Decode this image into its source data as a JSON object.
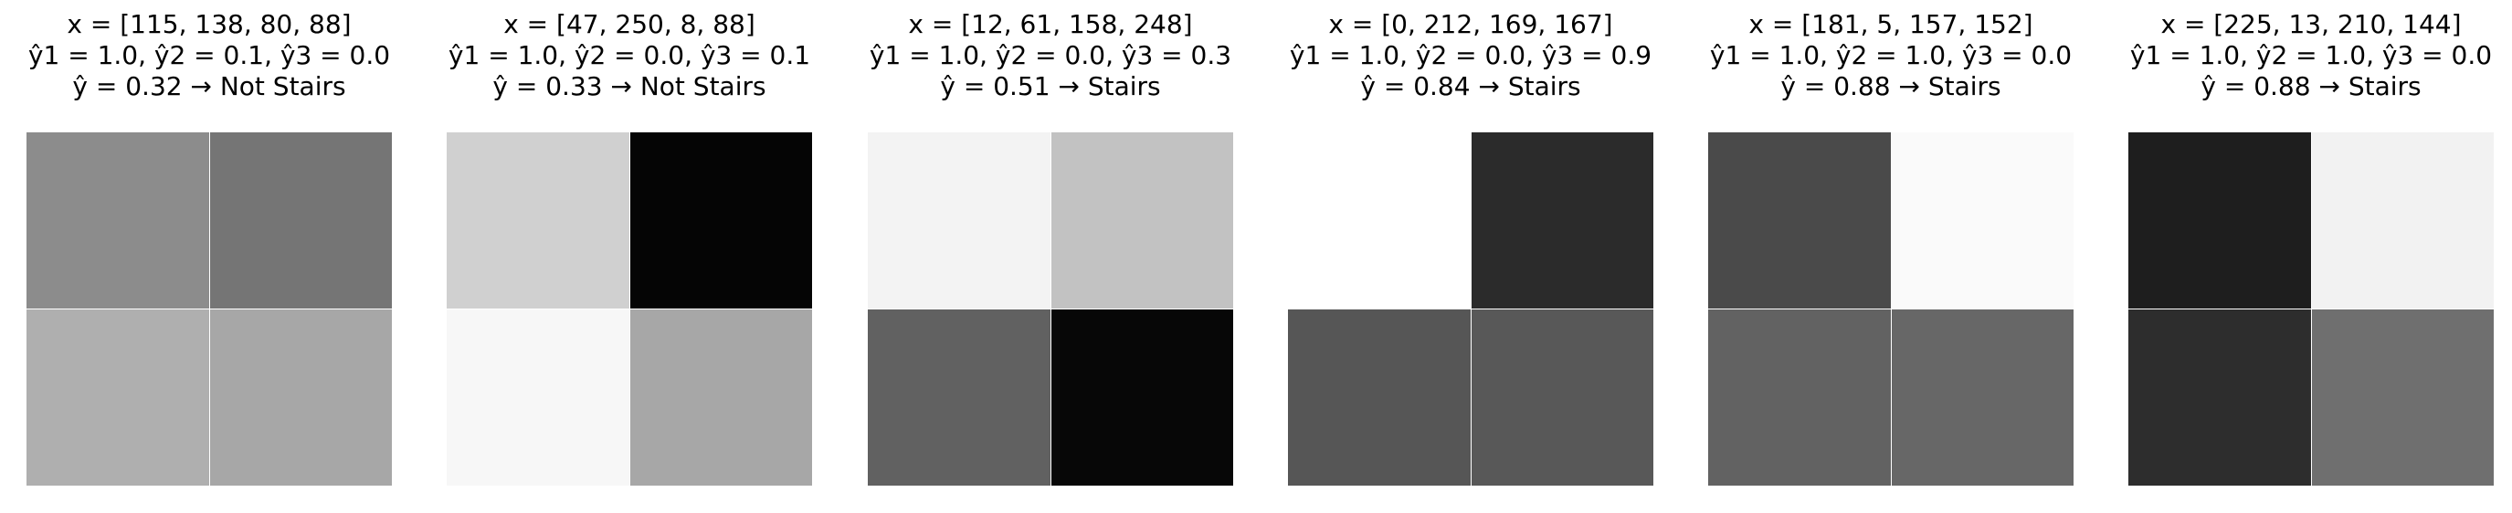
{
  "panels": [
    {
      "x_line": "x = [115, 138, 80, 88]",
      "y_line": "ŷ1 = 1.0, ŷ2 = 0.1, ŷ3 = 0.0",
      "result_line": "ŷ = 0.32 → Not Stairs",
      "pixels": [
        115,
        138,
        80,
        88
      ]
    },
    {
      "x_line": "x = [47, 250, 8, 88]",
      "y_line": "ŷ1 = 1.0, ŷ2 = 0.0, ŷ3 = 0.1",
      "result_line": "ŷ = 0.33 → Not Stairs",
      "pixels": [
        47,
        250,
        8,
        88
      ]
    },
    {
      "x_line": "x = [12, 61, 158, 248]",
      "y_line": "ŷ1 = 1.0, ŷ2 = 0.0, ŷ3 = 0.3",
      "result_line": "ŷ = 0.51 → Stairs",
      "pixels": [
        12,
        61,
        158,
        248
      ]
    },
    {
      "x_line": "x = [0, 212, 169, 167]",
      "y_line": "ŷ1 = 1.0, ŷ2 = 0.0, ŷ3 = 0.9",
      "result_line": "ŷ = 0.84 → Stairs",
      "pixels": [
        0,
        212,
        169,
        167
      ]
    },
    {
      "x_line": "x = [181, 5, 157, 152]",
      "y_line": "ŷ1 = 1.0, ŷ2 = 1.0, ŷ3 = 0.0",
      "result_line": "ŷ = 0.88 → Stairs",
      "pixels": [
        181,
        5,
        157,
        152
      ]
    },
    {
      "x_line": "x = [225, 13, 210, 144]",
      "y_line": "ŷ1 = 1.0, ŷ2 = 1.0, ŷ3 = 0.0",
      "result_line": "ŷ = 0.88 → Stairs",
      "pixels": [
        225,
        13,
        210,
        144
      ]
    }
  ]
}
